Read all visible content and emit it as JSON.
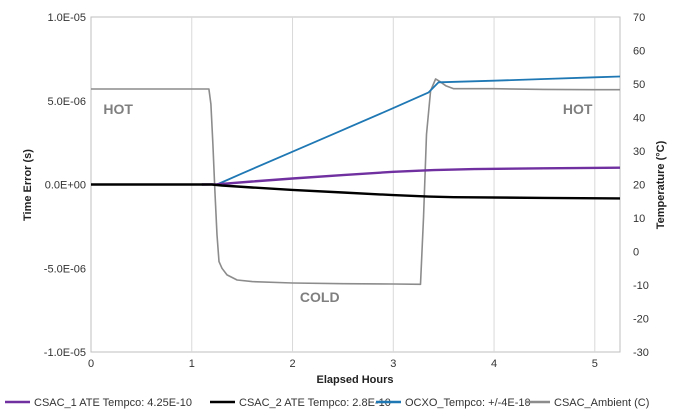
{
  "chart_data": {
    "type": "line",
    "xlabel": "Elapsed Hours",
    "ylabel_left": "Time Error (s)",
    "ylabel_right": "Temperature (°C)",
    "xlim": [
      0,
      5.25
    ],
    "ylim_left": [
      -1e-05,
      1e-05
    ],
    "ylim_right": [
      -30,
      70
    ],
    "x_ticks": [
      "0",
      "1",
      "2",
      "3",
      "4",
      "5"
    ],
    "y_left_ticks": [
      "-1.0E-05",
      "-5.0E-06",
      "0.0E+00",
      "5.0E-06",
      "1.0E-05"
    ],
    "y_right_ticks": [
      "-30",
      "-20",
      "-10",
      "0",
      "10",
      "20",
      "30",
      "40",
      "50",
      "60",
      "70"
    ],
    "grid": "vertical",
    "legend_position": "bottom",
    "series": [
      {
        "name": "CSAC_1 ATE Tempco: 4.25E-10",
        "color": "#7030a0",
        "axis": "left",
        "x": [
          1.1,
          1.25,
          1.6,
          2.0,
          2.5,
          3.0,
          3.4,
          3.8,
          4.5,
          5.25
        ],
        "y": [
          0,
          1e-08,
          1.8e-07,
          3.6e-07,
          5.6e-07,
          7.6e-07,
          8.6e-07,
          9.2e-07,
          9.7e-07,
          1e-06
        ]
      },
      {
        "name": "CSAC_2 ATE Tempco: 2.8E-10",
        "color": "#000000",
        "axis": "left",
        "x": [
          0,
          1.2,
          1.3,
          1.6,
          2.0,
          2.5,
          3.0,
          3.35,
          3.6,
          4.5,
          5.25
        ],
        "y": [
          0,
          0,
          -6e-08,
          -1.8e-07,
          -3.2e-07,
          -4.8e-07,
          -6.3e-07,
          -7.2e-07,
          -7.6e-07,
          -8e-07,
          -8.3e-07
        ]
      },
      {
        "name": "OCXO_Tempco: +/-4E-10",
        "color": "#1f78b4",
        "axis": "left",
        "x": [
          0,
          1.25,
          1.5,
          2.0,
          2.5,
          3.0,
          3.35,
          3.45,
          4.0,
          4.5,
          5.0,
          5.25
        ],
        "y": [
          0,
          0,
          6.6e-07,
          1.96e-06,
          3.26e-06,
          4.56e-06,
          5.5e-06,
          6.1e-06,
          6.2e-06,
          6.3e-06,
          6.4e-06,
          6.45e-06
        ]
      },
      {
        "name": "CSAC_Ambient (C)",
        "color": "#8c8c8c",
        "axis": "right",
        "x": [
          0,
          1.17,
          1.19,
          1.21,
          1.23,
          1.25,
          1.27,
          1.3,
          1.35,
          1.45,
          1.6,
          2.0,
          2.5,
          3.0,
          3.27,
          3.3,
          3.33,
          3.37,
          3.42,
          3.46,
          3.52,
          3.6,
          4.0,
          4.5,
          5.0,
          5.25
        ],
        "y": [
          48.5,
          48.5,
          44,
          32,
          18,
          5,
          -3,
          -5,
          -7,
          -8.5,
          -9,
          -9.4,
          -9.6,
          -9.7,
          -9.8,
          10,
          35,
          48,
          51.5,
          50.8,
          49.5,
          48.6,
          48.6,
          48.4,
          48.3,
          48.3
        ]
      }
    ],
    "annotations": [
      {
        "text": "HOT",
        "x": 0.27,
        "axis": "right",
        "y": 41
      },
      {
        "text": "COLD",
        "x": 2.27,
        "axis": "right",
        "y": -15
      },
      {
        "text": "HOT",
        "x": 4.83,
        "axis": "right",
        "y": 41
      }
    ]
  }
}
